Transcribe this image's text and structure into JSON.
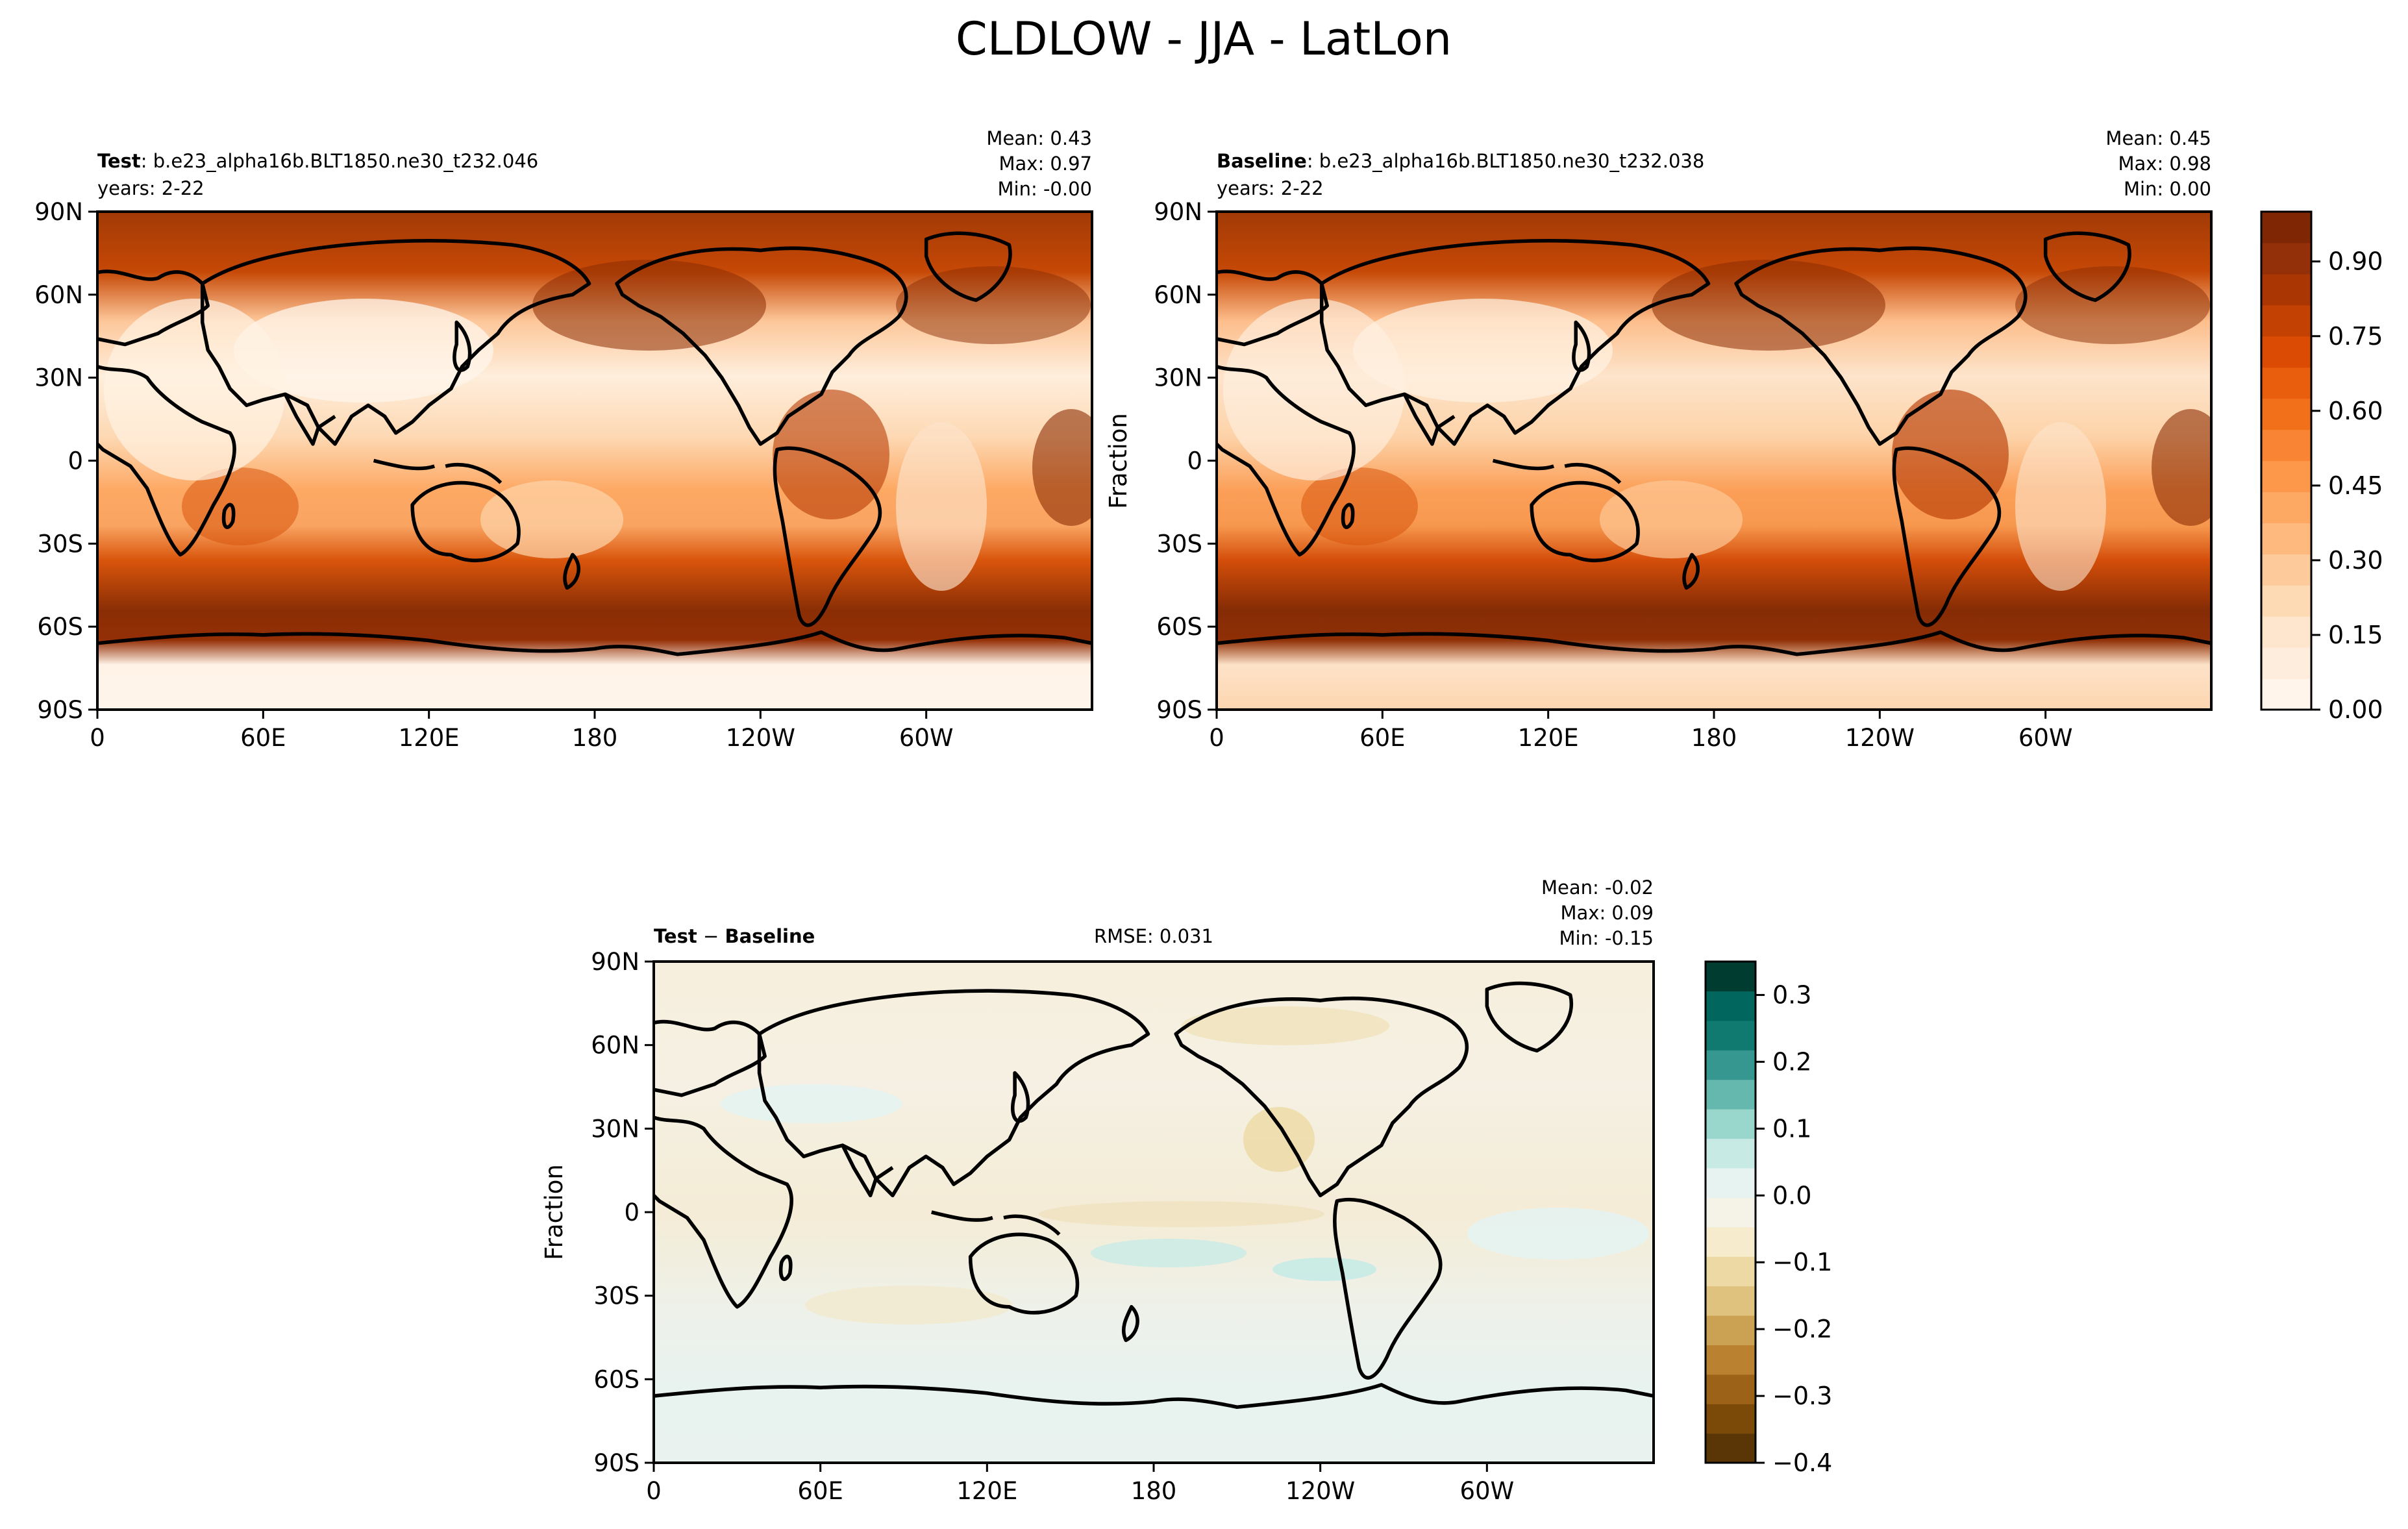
{
  "suptitle": "CLDLOW - JJA - LatLon",
  "x_ticks": [
    "0",
    "60E",
    "120E",
    "180",
    "120W",
    "60W"
  ],
  "y_ticks": [
    "90N",
    "60N",
    "30N",
    "0",
    "30S",
    "60S",
    "90S"
  ],
  "chart_data": [
    {
      "type": "heatmap",
      "panel": "test",
      "label_bold": "Test",
      "case": ": b.e23_alpha16b.BLT1850.ne30_t232.046",
      "years": "years: 2-22",
      "stats": [
        "Mean:  0.43",
        "Max:  0.97",
        "Min: -0.00"
      ],
      "x_range": [
        0,
        360
      ],
      "y_range": [
        -90,
        90
      ],
      "colormap": "Oranges",
      "color_range": [
        0.0,
        1.0
      ],
      "xlabel": "",
      "ylabel": ""
    },
    {
      "type": "heatmap",
      "panel": "baseline",
      "label_bold": "Baseline",
      "case": ": b.e23_alpha16b.BLT1850.ne30_t232.038",
      "years": "years: 2-22",
      "stats": [
        "Mean:  0.45",
        "Max:  0.98",
        "Min:  0.00"
      ],
      "x_range": [
        0,
        360
      ],
      "y_range": [
        -90,
        90
      ],
      "colormap": "Oranges",
      "color_range": [
        0.0,
        1.0
      ],
      "xlabel": "",
      "ylabel": "Fraction",
      "colorbar_ticks": [
        "0.00",
        "0.15",
        "0.30",
        "0.45",
        "0.60",
        "0.75",
        "0.90"
      ],
      "colorbar_tick_values": [
        0.0,
        0.15,
        0.3,
        0.45,
        0.6,
        0.75,
        0.9
      ]
    },
    {
      "type": "heatmap",
      "panel": "difference",
      "label_bold_1": "Test",
      "label_op": " − ",
      "label_bold_2": "Baseline",
      "rmse": "RMSE: 0.031",
      "stats": [
        "Mean: -0.02",
        "Max:  0.09",
        "Min: -0.15"
      ],
      "x_range": [
        0,
        360
      ],
      "y_range": [
        -90,
        90
      ],
      "colormap": "BrBG",
      "color_range": [
        -0.4,
        0.35
      ],
      "xlabel": "",
      "ylabel": "Fraction",
      "colorbar_ticks": [
        "0.3",
        "0.2",
        "0.1",
        "0.0",
        "−0.1",
        "−0.2",
        "−0.3",
        "−0.4"
      ],
      "colorbar_tick_values": [
        0.3,
        0.2,
        0.1,
        0.0,
        -0.1,
        -0.2,
        -0.3,
        -0.4
      ]
    }
  ],
  "colors": {
    "oranges": [
      "#fff5eb",
      "#feeddc",
      "#fee6ce",
      "#fdd9b4",
      "#fdcb9b",
      "#fdb97e",
      "#fda863",
      "#fd974a",
      "#f98534",
      "#f3701b",
      "#e95e0d",
      "#db4b03",
      "#c34103",
      "#aa3603",
      "#93300a",
      "#7f2704"
    ],
    "brbg": [
      "#5a3505",
      "#7b4a09",
      "#9c6218",
      "#b98130",
      "#cba153",
      "#dfc27d",
      "#ecd9a4",
      "#f6ebcd",
      "#f5f2e8",
      "#e6f3f1",
      "#c7eae5",
      "#99d6cc",
      "#64b8ad",
      "#35978f",
      "#107a70",
      "#01665e",
      "#003c30"
    ]
  }
}
